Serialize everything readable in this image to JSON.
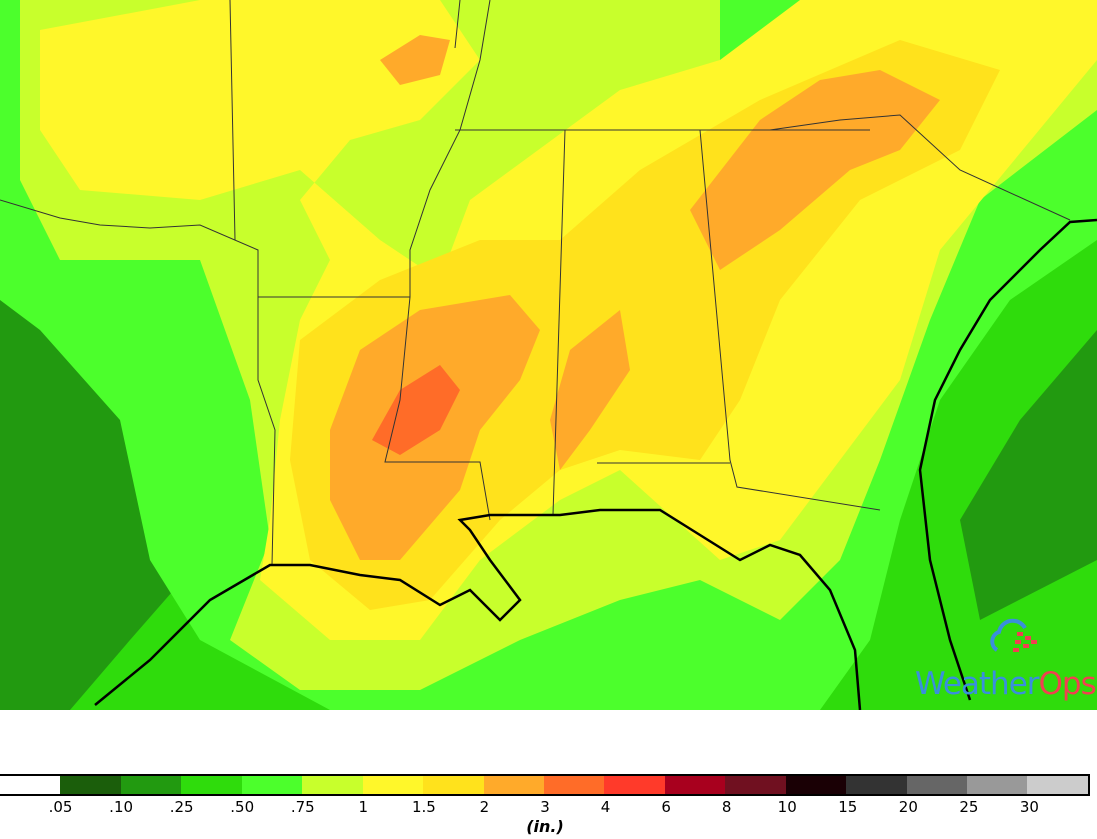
{
  "map": {
    "colors": {
      "dark_green": "#229a10",
      "green": "#2fdc0c",
      "light_green": "#4cff2c",
      "chartreuse": "#c8ff2c",
      "yellow": "#fff72a",
      "gold": "#ffe21c",
      "orange": "#ffaa2a",
      "red_orange": "#ff6c28"
    }
  },
  "logo": {
    "text_part1": "Weather",
    "text_part2": "Ops"
  },
  "legend": {
    "unit": "(in.)",
    "colors": [
      "#ffffff",
      "#1b5e0b",
      "#229a10",
      "#2fdc0c",
      "#4cff2c",
      "#c8ff2c",
      "#fff72a",
      "#ffe21c",
      "#ffaa2a",
      "#ff6c28",
      "#ff3a2a",
      "#a8001e",
      "#701020",
      "#1a0005",
      "#333333",
      "#666666",
      "#999999",
      "#cccccc"
    ],
    "labels": [
      ".05",
      ".10",
      ".25",
      ".50",
      ".75",
      "1",
      "1.5",
      "2",
      "3",
      "4",
      "6",
      "8",
      "10",
      "15",
      "20",
      "25",
      "30"
    ]
  }
}
